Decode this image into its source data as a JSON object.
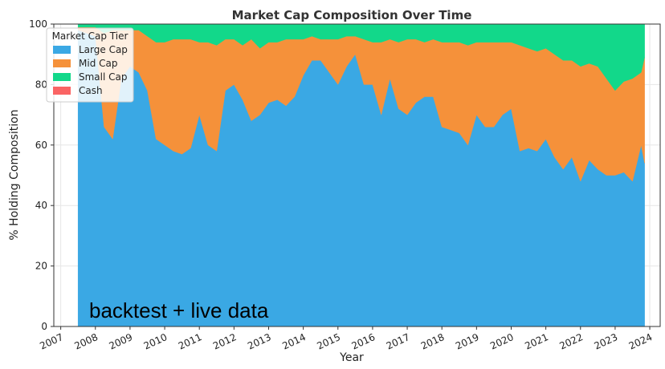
{
  "chart_data": {
    "type": "area",
    "stacked": true,
    "title": "Market Cap Composition Over Time",
    "xlabel": "Year",
    "ylabel": "% Holding Composition",
    "xlim": [
      2006.8,
      2024.3
    ],
    "ylim": [
      0,
      100
    ],
    "x_ticks": [
      2007,
      2008,
      2009,
      2010,
      2011,
      2012,
      2013,
      2014,
      2015,
      2016,
      2017,
      2018,
      2019,
      2020,
      2021,
      2022,
      2023,
      2024
    ],
    "y_ticks": [
      0,
      20,
      40,
      60,
      80,
      100
    ],
    "grid": true,
    "legend": {
      "title": "Market Cap Tier",
      "position": "upper-left"
    },
    "annotation": "backtest + live data",
    "x": [
      2007.5,
      2008.0,
      2008.25,
      2008.5,
      2008.75,
      2009.0,
      2009.25,
      2009.5,
      2009.75,
      2010.0,
      2010.25,
      2010.5,
      2010.75,
      2011.0,
      2011.25,
      2011.5,
      2011.75,
      2012.0,
      2012.25,
      2012.5,
      2012.75,
      2013.0,
      2013.25,
      2013.5,
      2013.75,
      2014.0,
      2014.25,
      2014.5,
      2014.75,
      2015.0,
      2015.25,
      2015.5,
      2015.75,
      2016.0,
      2016.25,
      2016.5,
      2016.75,
      2017.0,
      2017.25,
      2017.5,
      2017.75,
      2018.0,
      2018.25,
      2018.5,
      2018.75,
      2019.0,
      2019.25,
      2019.5,
      2019.75,
      2020.0,
      2020.25,
      2020.5,
      2020.75,
      2021.0,
      2021.25,
      2021.5,
      2021.75,
      2022.0,
      2022.25,
      2022.5,
      2022.75,
      2023.0,
      2023.25,
      2023.5,
      2023.75,
      2023.85
    ],
    "series": [
      {
        "name": "Large Cap",
        "color": "#3aa8e4",
        "values": [
          98,
          96,
          66,
          62,
          82,
          86,
          84,
          78,
          62,
          60,
          58,
          57,
          59,
          70,
          60,
          58,
          78,
          80,
          75,
          68,
          70,
          74,
          75,
          73,
          76,
          83,
          88,
          88,
          84,
          80,
          86,
          90,
          80,
          80,
          70,
          82,
          72,
          70,
          74,
          76,
          76,
          66,
          65,
          64,
          60,
          70,
          66,
          66,
          70,
          72,
          58,
          59,
          58,
          62,
          56,
          52,
          56,
          48,
          55,
          52,
          50,
          50,
          51,
          48,
          60,
          54
        ]
      },
      {
        "name": "Mid Cap",
        "color": "#f5913a",
        "values": [
          1,
          3,
          31,
          36,
          16,
          12,
          14,
          18,
          32,
          34,
          37,
          38,
          36,
          24,
          34,
          35,
          17,
          15,
          18,
          27,
          22,
          20,
          19,
          22,
          19,
          12,
          8,
          7,
          11,
          15,
          10,
          6,
          15,
          14,
          24,
          13,
          22,
          25,
          21,
          18,
          19,
          28,
          29,
          30,
          33,
          24,
          28,
          28,
          24,
          22,
          35,
          33,
          33,
          30,
          34,
          36,
          32,
          38,
          32,
          34,
          32,
          28,
          30,
          34,
          24,
          35
        ]
      },
      {
        "name": "Small Cap",
        "color": "#12d88a",
        "values": [
          1,
          1,
          3,
          2,
          2,
          2,
          2,
          4,
          6,
          6,
          5,
          5,
          5,
          6,
          6,
          7,
          5,
          5,
          7,
          5,
          8,
          6,
          6,
          5,
          5,
          5,
          4,
          5,
          5,
          5,
          4,
          4,
          5,
          6,
          6,
          5,
          6,
          5,
          5,
          6,
          5,
          6,
          6,
          6,
          7,
          6,
          6,
          6,
          6,
          6,
          7,
          8,
          9,
          8,
          10,
          12,
          12,
          14,
          13,
          14,
          18,
          22,
          19,
          18,
          16,
          11
        ]
      },
      {
        "name": "Cash",
        "color": "#fa6464",
        "values": [
          0,
          0,
          0,
          0,
          0,
          0,
          0,
          0,
          0,
          0,
          0,
          0,
          0,
          0,
          0,
          0,
          0,
          0,
          0,
          0,
          0,
          0,
          0,
          0,
          0,
          0,
          0,
          0,
          0,
          0,
          0,
          0,
          0,
          0,
          0,
          0,
          0,
          0,
          0,
          0,
          0,
          0,
          0,
          0,
          0,
          0,
          0,
          0,
          0,
          0,
          0,
          0,
          0,
          0,
          0,
          0,
          0,
          0,
          0,
          0,
          0,
          0,
          0,
          0,
          0,
          0
        ]
      }
    ]
  }
}
